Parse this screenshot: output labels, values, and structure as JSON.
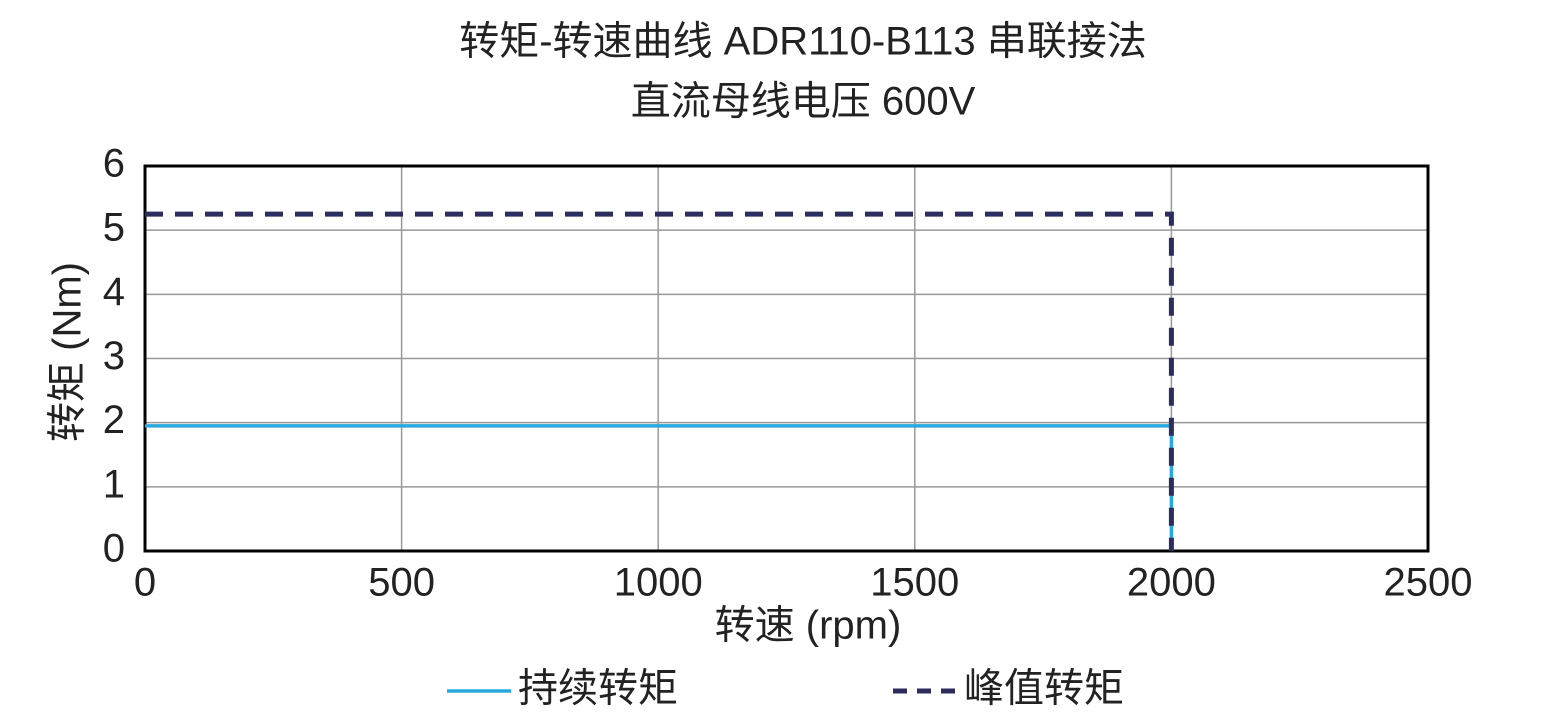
{
  "chart_data": {
    "type": "line",
    "title": "转矩-转速曲线 ADR110-B113 串联接法",
    "subtitle": "直流母线电压 600V",
    "x_label": "转速 (rpm)",
    "y_label": "转矩 (Nm)",
    "x": [
      0,
      2000,
      2000
    ],
    "series": [
      {
        "name": "持续转矩",
        "color": "#29a8dc",
        "line_style": "solid",
        "values": [
          1.95,
          1.95,
          0
        ]
      },
      {
        "name": "峰值转矩",
        "color": "#2b2d5e",
        "line_style": "dashed",
        "values": [
          5.25,
          5.25,
          0
        ]
      }
    ],
    "xlim": [
      0,
      2500
    ],
    "xticks": [
      0,
      500,
      1000,
      1500,
      2000,
      2500
    ],
    "ylim": [
      0,
      6
    ],
    "yticks": [
      0,
      1,
      2,
      3,
      4,
      5,
      6
    ],
    "grid": true,
    "legend": "bottom"
  }
}
